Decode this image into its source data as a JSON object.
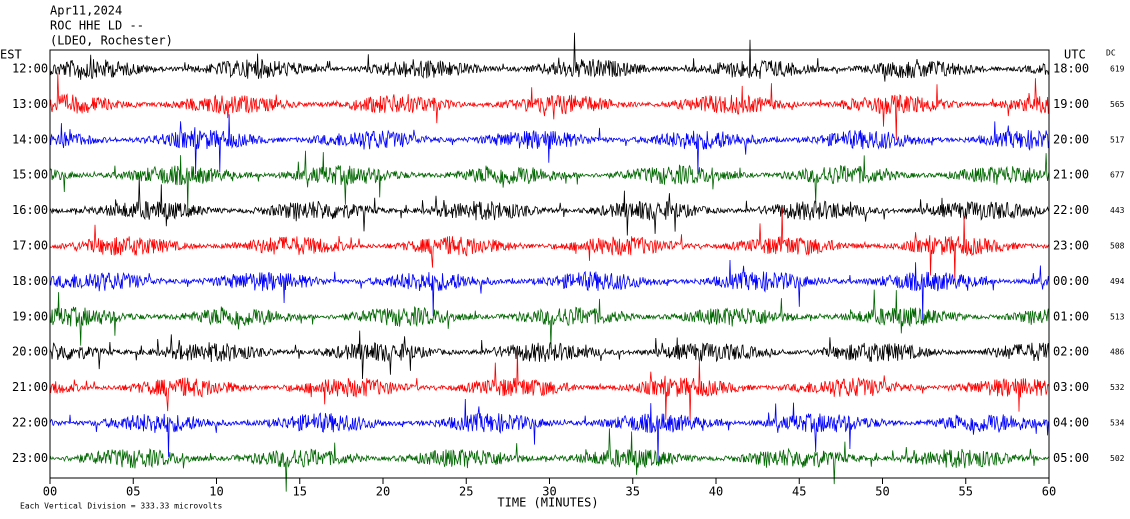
{
  "header": {
    "date": "Apr11,2024",
    "station": "ROC HHE LD --",
    "location": "(LDEO, Rochester)"
  },
  "left_axis_title": "EST",
  "right_axis_title": "UTC",
  "dc_title": "DC",
  "rows": [
    {
      "est": "12:00",
      "utc": "18:00",
      "dc": 619
    },
    {
      "est": "13:00",
      "utc": "19:00",
      "dc": 565
    },
    {
      "est": "14:00",
      "utc": "20:00",
      "dc": 517
    },
    {
      "est": "15:00",
      "utc": "21:00",
      "dc": 677
    },
    {
      "est": "16:00",
      "utc": "22:00",
      "dc": 443
    },
    {
      "est": "17:00",
      "utc": "23:00",
      "dc": 508
    },
    {
      "est": "18:00",
      "utc": "00:00",
      "dc": 494
    },
    {
      "est": "19:00",
      "utc": "01:00",
      "dc": 513
    },
    {
      "est": "20:00",
      "utc": "02:00",
      "dc": 486
    },
    {
      "est": "21:00",
      "utc": "03:00",
      "dc": 532
    },
    {
      "est": "22:00",
      "utc": "04:00",
      "dc": 534
    },
    {
      "est": "23:00",
      "utc": "05:00",
      "dc": 502
    }
  ],
  "x_axis": {
    "ticks": [
      "00",
      "05",
      "10",
      "15",
      "20",
      "25",
      "30",
      "35",
      "40",
      "45",
      "50",
      "55",
      "60"
    ],
    "label": "TIME (MINUTES)"
  },
  "footer": "Each Vertical Division = 333.33 microvolts"
}
